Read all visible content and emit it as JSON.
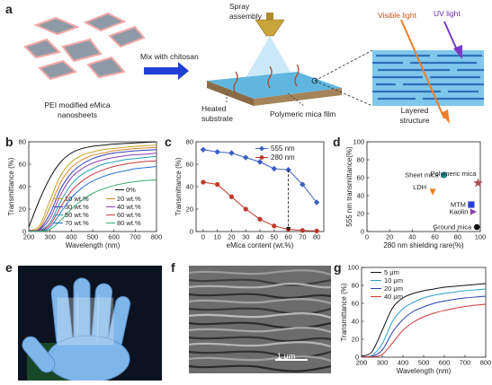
{
  "panel_a": {
    "letter": "a",
    "label_nanosheets": "PEI modified eMica nanosheets",
    "label_mix": "Mix with chitosan",
    "label_spray": "Spray assembly",
    "label_heated": "Heated substrate",
    "label_film": "Polymeric mica film",
    "label_visible": "Visible light",
    "label_uv": "UV light",
    "label_layered": "Layered structure",
    "colors": {
      "nanosheet": "#8e9aa6",
      "nanosheet_outline": "#f2a7a7",
      "arrow": "#1f3fd6",
      "visible": "#ee7e2b",
      "uv": "#7a3bc8",
      "layer_bg": "#7ec8ec",
      "layer_line": "#2e6fb8"
    }
  },
  "panel_b": {
    "letter": "b"
  },
  "panel_c": {
    "letter": "c"
  },
  "panel_d": {
    "letter": "d"
  },
  "panel_e": {
    "letter": "e"
  },
  "panel_f": {
    "letter": "f",
    "scale_bar": "1 μm"
  },
  "panel_g": {
    "letter": "g"
  },
  "chart_data": [
    {
      "panel": "b",
      "type": "line",
      "xlabel": "Wavelength (nm)",
      "ylabel": "Transmittance (%)",
      "xlim": [
        200,
        800
      ],
      "ylim": [
        0,
        80
      ],
      "xticks": [
        200,
        300,
        400,
        500,
        600,
        700,
        800
      ],
      "yticks": [
        0,
        20,
        40,
        60,
        80
      ],
      "grid": false,
      "legend": "bottom-right",
      "x": [
        200,
        250,
        300,
        350,
        400,
        450,
        500,
        550,
        600,
        650,
        700,
        750,
        800
      ],
      "series": [
        {
          "name": "0%",
          "color": "#111111",
          "values": [
            4,
            28,
            48,
            62,
            70,
            74,
            76,
            77,
            78,
            78.5,
            79,
            79.5,
            80
          ]
        },
        {
          "name": "10 wt.%",
          "color": "#c9a227",
          "values": [
            1,
            5,
            28,
            50,
            62,
            68,
            71,
            73,
            74,
            75,
            76,
            76.5,
            77
          ]
        },
        {
          "name": "20 wt.%",
          "color": "#d6862a",
          "values": [
            1,
            3,
            22,
            44,
            57,
            64,
            68,
            70,
            72,
            73,
            74,
            74.5,
            75
          ]
        },
        {
          "name": "30 wt.%",
          "color": "#2f3fb8",
          "values": [
            1,
            2,
            16,
            38,
            52,
            60,
            65,
            68,
            70,
            71,
            72,
            72.5,
            73
          ]
        },
        {
          "name": "40 wt.%",
          "color": "#8a3fb0",
          "values": [
            1,
            1.5,
            12,
            33,
            48,
            56,
            61,
            64,
            66,
            67.5,
            68.5,
            69,
            70
          ]
        },
        {
          "name": "50 wt.%",
          "color": "#2a9fb5",
          "values": [
            0.5,
            1,
            8,
            27,
            42,
            51,
            56,
            60,
            62,
            64,
            65,
            66,
            67
          ]
        },
        {
          "name": "60 wt.%",
          "color": "#c8373f",
          "values": [
            0.5,
            0.8,
            6,
            22,
            36,
            45,
            51,
            55,
            58,
            60,
            61.5,
            62.5,
            63
          ]
        },
        {
          "name": "70 wt.%",
          "color": "#2b6fd1",
          "values": [
            0.3,
            0.5,
            4,
            17,
            30,
            39,
            45,
            49,
            52,
            54,
            56,
            57,
            58
          ]
        },
        {
          "name": "80 wt.%",
          "color": "#3aa86b",
          "values": [
            0.2,
            0.3,
            2,
            10,
            20,
            28,
            34,
            38,
            41,
            43,
            44.5,
            45.5,
            46
          ]
        }
      ]
    },
    {
      "panel": "c",
      "type": "line",
      "xlabel": "eMica content (wt.%)",
      "ylabel": "Transmittance (%)",
      "xlim": [
        -5,
        85
      ],
      "ylim": [
        0,
        80
      ],
      "xticks": [
        0,
        10,
        20,
        30,
        40,
        50,
        60,
        70,
        80
      ],
      "yticks": [
        0,
        20,
        40,
        60,
        80
      ],
      "legend": "top-right",
      "x": [
        0,
        10,
        20,
        30,
        40,
        50,
        60,
        70,
        80
      ],
      "series": [
        {
          "name": "555 nm",
          "color": "#3d5fc4",
          "marker": "diamond",
          "values": [
            73,
            71,
            70,
            66,
            62,
            56,
            55,
            42,
            26
          ]
        },
        {
          "name": "280 nm",
          "color": "#c0392b",
          "marker": "circle",
          "values": [
            44,
            42,
            31,
            20,
            11,
            5,
            2,
            1,
            0.5
          ]
        }
      ],
      "annotation_x": 60
    },
    {
      "panel": "d",
      "type": "scatter",
      "xlabel": "280 nm shielding rare(%)",
      "ylabel": "555 nm transmittance(%)",
      "xlim": [
        0,
        100
      ],
      "ylim": [
        0,
        100
      ],
      "xticks": [
        0,
        20,
        40,
        60,
        80,
        100
      ],
      "yticks": [
        0,
        20,
        40,
        60,
        80,
        100
      ],
      "points": [
        {
          "name": "Sheet mica",
          "x": 68,
          "y": 63,
          "color": "#1a8a8a",
          "marker": "circle"
        },
        {
          "name": "Polymeric mica",
          "x": 98,
          "y": 54,
          "color": "#b24a52",
          "marker": "star"
        },
        {
          "name": "LDH",
          "x": 58,
          "y": 44,
          "color": "#e67e22",
          "marker": "triangle-down"
        },
        {
          "name": "MTM",
          "x": 92,
          "y": 30,
          "color": "#2a3fd6",
          "marker": "square"
        },
        {
          "name": "Kaolin",
          "x": 94,
          "y": 22,
          "color": "#8e44ad",
          "marker": "triangle-right"
        },
        {
          "name": "Ground mica",
          "x": 97,
          "y": 5,
          "color": "#111111",
          "marker": "hexagon"
        }
      ]
    },
    {
      "panel": "g",
      "type": "line",
      "xlabel": "Wavelength (nm)",
      "ylabel": "Transmittance (%)",
      "xlim": [
        200,
        800
      ],
      "ylim": [
        0,
        100
      ],
      "xticks": [
        200,
        300,
        400,
        500,
        600,
        700,
        800
      ],
      "yticks": [
        0,
        20,
        40,
        60,
        80,
        100
      ],
      "legend": "top-left",
      "x": [
        200,
        250,
        300,
        350,
        400,
        450,
        500,
        550,
        600,
        650,
        700,
        750,
        800
      ],
      "series": [
        {
          "name": "5 μm",
          "color": "#111111",
          "values": [
            1,
            6,
            30,
            55,
            66,
            71,
            74,
            76,
            78,
            79,
            80,
            81,
            82
          ]
        },
        {
          "name": "10 μm",
          "color": "#2a9fd6",
          "values": [
            0.5,
            2,
            15,
            40,
            54,
            61,
            66,
            69,
            71,
            72.5,
            74,
            75,
            76
          ]
        },
        {
          "name": "20 μm",
          "color": "#2b3fb0",
          "values": [
            0.3,
            1,
            8,
            28,
            42,
            51,
            56,
            60,
            62.5,
            64.5,
            66,
            67,
            68
          ]
        },
        {
          "name": "40 μm",
          "color": "#d23a3a",
          "values": [
            0.2,
            0.5,
            3,
            16,
            30,
            39,
            45,
            49,
            52,
            54.5,
            56.5,
            58,
            59
          ]
        }
      ]
    }
  ]
}
